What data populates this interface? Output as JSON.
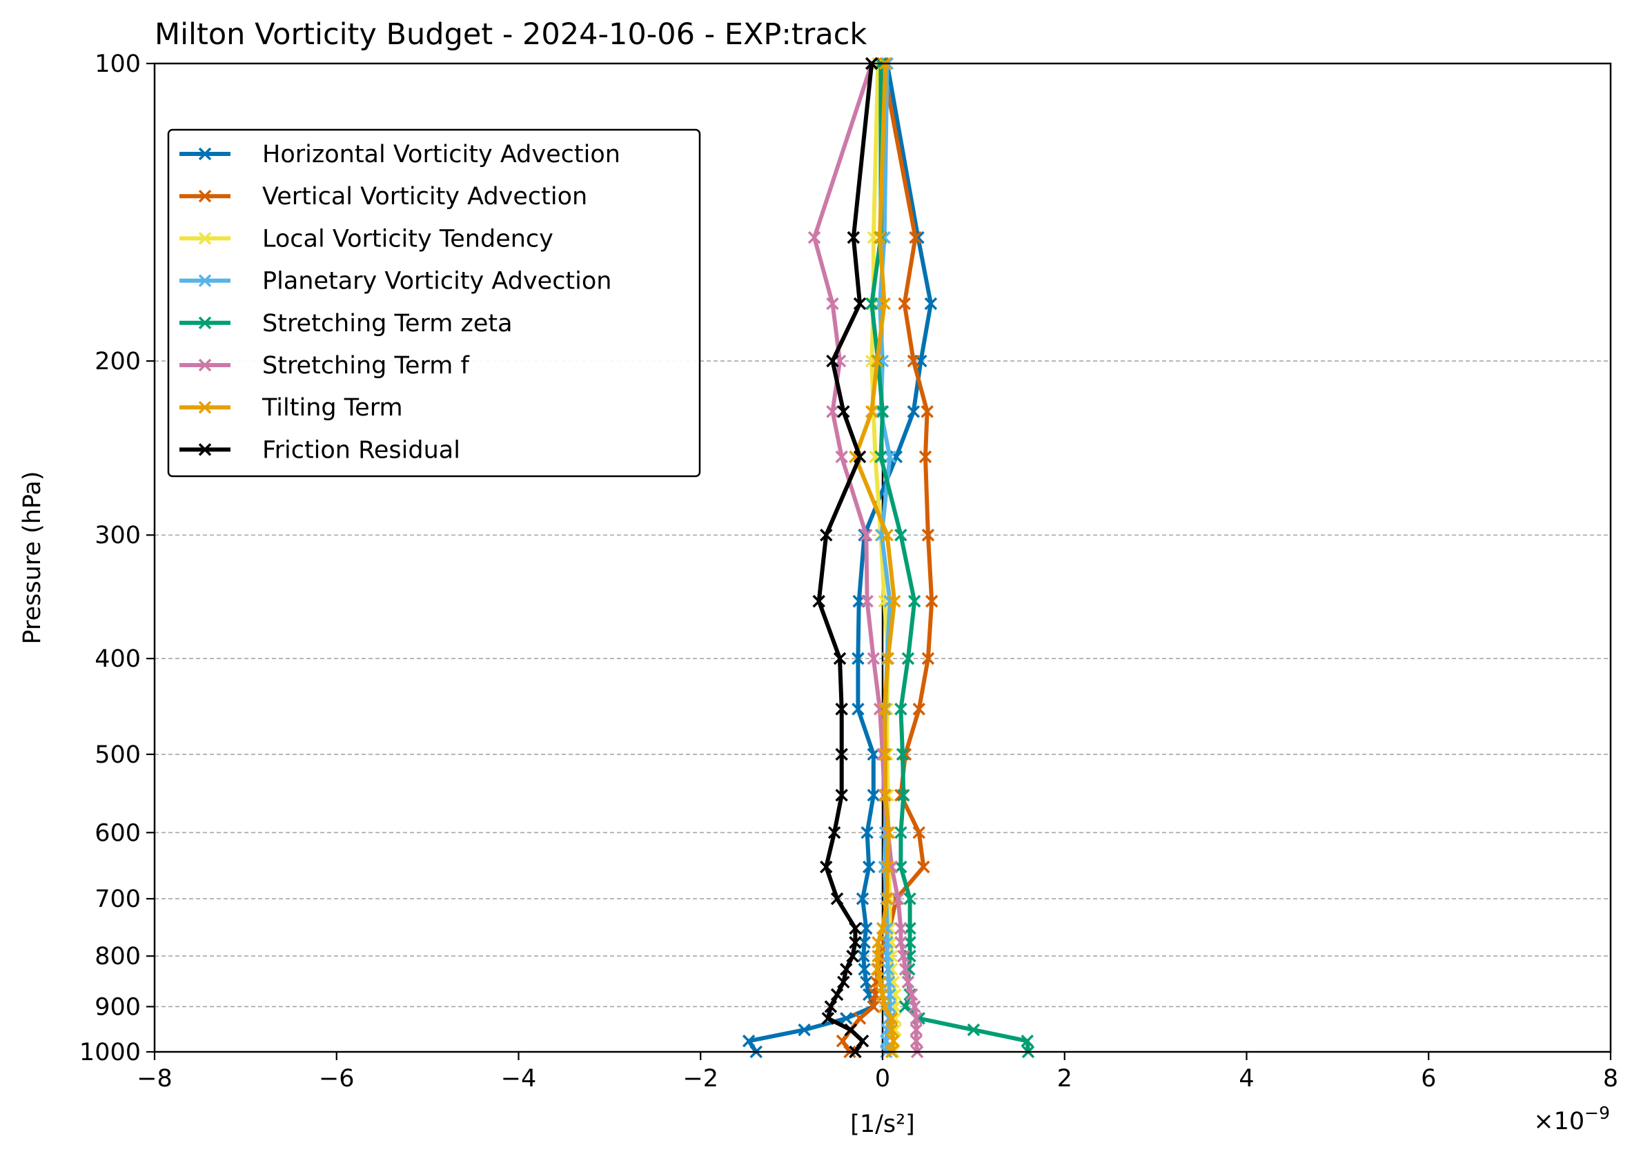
{
  "chart_data": {
    "type": "line",
    "title": "Milton Vorticity Budget - 2024-10-06 - EXP:track",
    "xlabel": "[1/s²]",
    "ylabel": "Pressure (hPa)",
    "x_scale_label": "×10⁻⁹",
    "x_scale_base": "×10",
    "x_scale_exp": "−9",
    "xlim": [
      -8,
      8
    ],
    "ylim": [
      1000,
      100
    ],
    "y_scale": "log",
    "x_ticks": [
      -8,
      -6,
      -4,
      -2,
      0,
      2,
      4,
      6,
      8
    ],
    "x_tick_labels": [
      "−8",
      "−6",
      "−4",
      "−2",
      "0",
      "2",
      "4",
      "6",
      "8"
    ],
    "y_ticks": [
      100,
      200,
      300,
      400,
      500,
      600,
      700,
      800,
      900,
      1000
    ],
    "y_tick_labels": [
      "100",
      "200",
      "300",
      "400",
      "500",
      "600",
      "700",
      "800",
      "900",
      "1000"
    ],
    "grid": "horizontal dashed at y ticks",
    "legend_position": "upper-left",
    "marker": "x",
    "pressure_levels": [
      100,
      150,
      175,
      200,
      225,
      250,
      300,
      350,
      400,
      450,
      500,
      550,
      600,
      650,
      700,
      750,
      775,
      800,
      825,
      850,
      875,
      900,
      925,
      950,
      975,
      1000
    ],
    "series": [
      {
        "name": "Horizontal Vorticity Advection",
        "color": "#0072b2",
        "values": [
          0.05,
          0.39,
          0.53,
          0.42,
          0.34,
          0.15,
          -0.2,
          -0.26,
          -0.27,
          -0.27,
          -0.1,
          -0.1,
          -0.17,
          -0.15,
          -0.22,
          -0.18,
          -0.2,
          -0.21,
          -0.2,
          -0.18,
          -0.15,
          -0.1,
          -0.4,
          -0.86,
          -1.47,
          -1.39
        ]
      },
      {
        "name": "Vertical Vorticity Advection",
        "color": "#d55e00",
        "values": [
          0.0,
          0.36,
          0.24,
          0.34,
          0.49,
          0.47,
          0.5,
          0.54,
          0.5,
          0.4,
          0.25,
          0.2,
          0.4,
          0.45,
          0.15,
          0.08,
          0.02,
          -0.02,
          -0.05,
          -0.07,
          -0.08,
          -0.1,
          -0.25,
          -0.35,
          -0.44,
          -0.36
        ]
      },
      {
        "name": "Local Vorticity Tendency",
        "color": "#f0e442",
        "values": [
          -0.05,
          -0.1,
          -0.1,
          -0.12,
          -0.1,
          -0.08,
          -0.02,
          0.02,
          0.06,
          0.05,
          0.05,
          0.06,
          0.06,
          0.07,
          0.08,
          0.08,
          0.1,
          0.1,
          0.1,
          0.12,
          0.14,
          0.14,
          0.14,
          0.14,
          0.12,
          0.12
        ]
      },
      {
        "name": "Planetary Vorticity Advection",
        "color": "#56b4e9",
        "values": [
          0.05,
          0.02,
          -0.03,
          0.0,
          -0.02,
          0.08,
          -0.01,
          0.08,
          0.05,
          0.03,
          0.02,
          0.03,
          0.03,
          0.02,
          0.04,
          0.05,
          0.05,
          0.05,
          0.06,
          0.07,
          0.08,
          0.08,
          0.07,
          0.05,
          0.04,
          0.04
        ]
      },
      {
        "name": "Stretching Term zeta",
        "color": "#009e73",
        "values": [
          -0.02,
          -0.02,
          -0.12,
          -0.05,
          0.0,
          -0.02,
          0.2,
          0.35,
          0.28,
          0.2,
          0.22,
          0.23,
          0.2,
          0.2,
          0.3,
          0.3,
          0.3,
          0.3,
          0.29,
          0.28,
          0.3,
          0.25,
          0.4,
          1.0,
          1.59,
          1.6
        ]
      },
      {
        "name": "Stretching Term f",
        "color": "#cc79a7",
        "values": [
          -0.12,
          -0.75,
          -0.55,
          -0.47,
          -0.55,
          -0.45,
          -0.18,
          -0.17,
          -0.1,
          -0.03,
          0.0,
          0.02,
          0.06,
          0.1,
          0.17,
          0.2,
          0.2,
          0.23,
          0.25,
          0.28,
          0.32,
          0.35,
          0.37,
          0.37,
          0.37,
          0.38
        ]
      },
      {
        "name": "Tilting Term",
        "color": "#e69f00",
        "values": [
          0.03,
          -0.03,
          0.02,
          -0.06,
          -0.12,
          -0.3,
          0.05,
          0.13,
          0.06,
          0.02,
          0.03,
          0.03,
          0.07,
          0.05,
          0.05,
          0.0,
          -0.05,
          -0.05,
          -0.06,
          -0.02,
          0.0,
          0.02,
          0.1,
          0.1,
          0.12,
          0.1
        ]
      },
      {
        "name": "Friction Residual",
        "color": "#000000",
        "values": [
          -0.12,
          -0.32,
          -0.25,
          -0.55,
          -0.43,
          -0.25,
          -0.62,
          -0.7,
          -0.47,
          -0.45,
          -0.45,
          -0.45,
          -0.53,
          -0.62,
          -0.5,
          -0.3,
          -0.3,
          -0.33,
          -0.4,
          -0.43,
          -0.5,
          -0.57,
          -0.6,
          -0.35,
          -0.22,
          -0.3
        ]
      }
    ]
  }
}
